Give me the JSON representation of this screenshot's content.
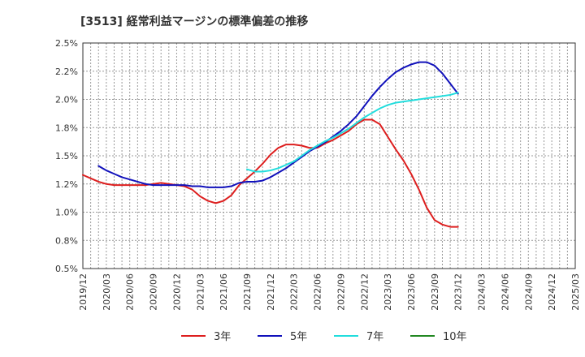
{
  "chart_data": {
    "type": "line",
    "title": "[3513]  経常利益マージンの標準偏差の推移",
    "xlabel": "",
    "ylabel": "",
    "ylim": [
      0.5,
      2.5
    ],
    "x_tick_labels": [
      "2019/12",
      "2020/03",
      "2020/06",
      "2020/09",
      "2020/12",
      "2021/03",
      "2021/06",
      "2021/09",
      "2021/12",
      "2022/03",
      "2022/06",
      "2022/09",
      "2022/12",
      "2023/03",
      "2023/06",
      "2023/09",
      "2023/12",
      "2024/03",
      "2024/06",
      "2024/09",
      "2024/12",
      "2025/03"
    ],
    "y_ticks": [
      0.5,
      0.75,
      1.0,
      1.25,
      1.5,
      1.75,
      2.0,
      2.25,
      2.5
    ],
    "y_tick_labels": [
      "0.5%",
      "0.8%",
      "1.0%",
      "1.2%",
      "1.5%",
      "1.8%",
      "2.0%",
      "2.2%",
      "2.5%"
    ],
    "grid": true,
    "legend_position": "bottom",
    "series": [
      {
        "name": "3年",
        "color": "#dd1f1f",
        "points": [
          [
            0,
            1.33
          ],
          [
            1,
            1.3
          ],
          [
            2,
            1.27
          ],
          [
            3,
            1.25
          ],
          [
            4,
            1.24
          ],
          [
            5,
            1.24
          ],
          [
            6,
            1.24
          ],
          [
            7,
            1.24
          ],
          [
            8,
            1.24
          ],
          [
            9,
            1.25
          ],
          [
            10,
            1.26
          ],
          [
            11,
            1.25
          ],
          [
            12,
            1.24
          ],
          [
            13,
            1.23
          ],
          [
            14,
            1.2
          ],
          [
            15,
            1.14
          ],
          [
            16,
            1.1
          ],
          [
            17,
            1.08
          ],
          [
            18,
            1.1
          ],
          [
            19,
            1.15
          ],
          [
            20,
            1.24
          ],
          [
            21,
            1.3
          ],
          [
            22,
            1.36
          ],
          [
            23,
            1.43
          ],
          [
            24,
            1.51
          ],
          [
            25,
            1.57
          ],
          [
            26,
            1.6
          ],
          [
            27,
            1.6
          ],
          [
            28,
            1.59
          ],
          [
            29,
            1.57
          ],
          [
            30,
            1.57
          ],
          [
            31,
            1.61
          ],
          [
            32,
            1.64
          ],
          [
            33,
            1.68
          ],
          [
            34,
            1.72
          ],
          [
            35,
            1.78
          ],
          [
            36,
            1.82
          ],
          [
            37,
            1.82
          ],
          [
            38,
            1.78
          ],
          [
            39,
            1.67
          ],
          [
            40,
            1.56
          ],
          [
            41,
            1.46
          ],
          [
            42,
            1.34
          ],
          [
            43,
            1.2
          ],
          [
            44,
            1.04
          ],
          [
            45,
            0.93
          ],
          [
            46,
            0.89
          ],
          [
            47,
            0.87
          ],
          [
            48,
            0.87
          ]
        ]
      },
      {
        "name": "5年",
        "color": "#1111bb",
        "points": [
          [
            2,
            1.41
          ],
          [
            3,
            1.37
          ],
          [
            4,
            1.34
          ],
          [
            5,
            1.31
          ],
          [
            6,
            1.29
          ],
          [
            7,
            1.27
          ],
          [
            8,
            1.25
          ],
          [
            9,
            1.24
          ],
          [
            10,
            1.24
          ],
          [
            11,
            1.24
          ],
          [
            12,
            1.24
          ],
          [
            13,
            1.24
          ],
          [
            14,
            1.23
          ],
          [
            15,
            1.23
          ],
          [
            16,
            1.22
          ],
          [
            17,
            1.22
          ],
          [
            18,
            1.22
          ],
          [
            19,
            1.23
          ],
          [
            20,
            1.26
          ],
          [
            21,
            1.27
          ],
          [
            22,
            1.27
          ],
          [
            23,
            1.28
          ],
          [
            24,
            1.31
          ],
          [
            25,
            1.35
          ],
          [
            26,
            1.39
          ],
          [
            27,
            1.44
          ],
          [
            28,
            1.49
          ],
          [
            29,
            1.54
          ],
          [
            30,
            1.58
          ],
          [
            31,
            1.62
          ],
          [
            32,
            1.67
          ],
          [
            33,
            1.72
          ],
          [
            34,
            1.78
          ],
          [
            35,
            1.85
          ],
          [
            36,
            1.94
          ],
          [
            37,
            2.03
          ],
          [
            38,
            2.11
          ],
          [
            39,
            2.18
          ],
          [
            40,
            2.24
          ],
          [
            41,
            2.28
          ],
          [
            42,
            2.31
          ],
          [
            43,
            2.33
          ],
          [
            44,
            2.33
          ],
          [
            45,
            2.3
          ],
          [
            46,
            2.23
          ],
          [
            47,
            2.14
          ],
          [
            48,
            2.05
          ]
        ]
      },
      {
        "name": "7年",
        "color": "#22dddd",
        "points": [
          [
            21,
            1.38
          ],
          [
            22,
            1.36
          ],
          [
            23,
            1.36
          ],
          [
            24,
            1.37
          ],
          [
            25,
            1.39
          ],
          [
            26,
            1.42
          ],
          [
            27,
            1.45
          ],
          [
            28,
            1.5
          ],
          [
            29,
            1.55
          ],
          [
            30,
            1.59
          ],
          [
            31,
            1.63
          ],
          [
            32,
            1.66
          ],
          [
            33,
            1.7
          ],
          [
            34,
            1.74
          ],
          [
            35,
            1.79
          ],
          [
            36,
            1.84
          ],
          [
            37,
            1.88
          ],
          [
            38,
            1.92
          ],
          [
            39,
            1.95
          ],
          [
            40,
            1.97
          ],
          [
            41,
            1.98
          ],
          [
            42,
            1.99
          ],
          [
            43,
            2.0
          ],
          [
            44,
            2.01
          ],
          [
            45,
            2.02
          ],
          [
            46,
            2.03
          ],
          [
            47,
            2.04
          ],
          [
            48,
            2.06
          ]
        ]
      },
      {
        "name": "10年",
        "color": "#228822",
        "points": []
      }
    ]
  }
}
